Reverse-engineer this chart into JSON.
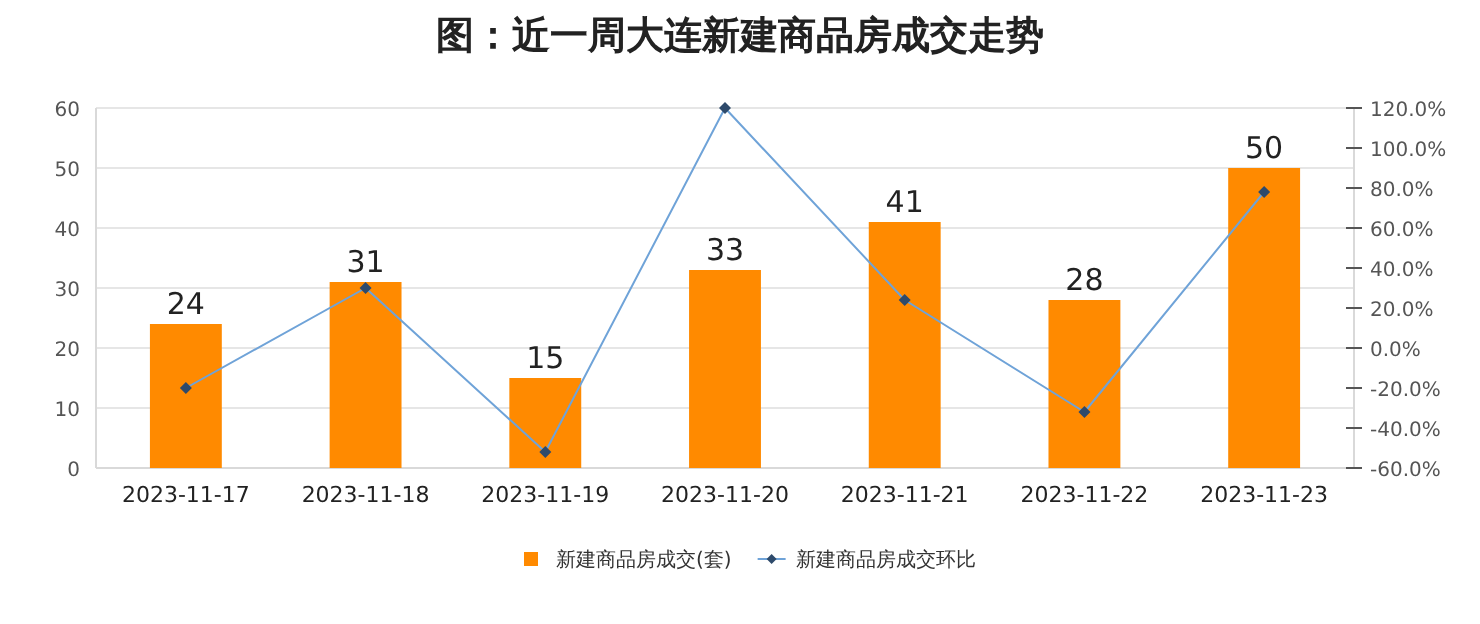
{
  "chart_data": {
    "type": "bar",
    "title": "图：近一周大连新建商品房成交走势",
    "categories": [
      "2023-11-17",
      "2023-11-18",
      "2023-11-19",
      "2023-11-20",
      "2023-11-21",
      "2023-11-22",
      "2023-11-23"
    ],
    "series": [
      {
        "name": "新建商品房成交(套)",
        "color": "#ff8a00",
        "values": [
          24,
          31,
          15,
          33,
          41,
          28,
          50
        ],
        "value_labels": [
          "24",
          "31",
          "15",
          "33",
          "41",
          "28",
          "50"
        ]
      },
      {
        "name": "新建商品房成交环比",
        "type": "line",
        "axis": "y2",
        "color": "#6fa3d8",
        "marker": "diamond",
        "values": [
          -20,
          30,
          -52,
          120,
          24,
          -32,
          78
        ]
      }
    ],
    "ylim": [
      0,
      60
    ],
    "yticks": [
      0,
      10,
      20,
      30,
      40,
      50,
      60
    ],
    "y2lim": [
      -60,
      120
    ],
    "y2ticks": [
      {
        "value": -60,
        "label": "-60.0%"
      },
      {
        "value": -40,
        "label": "-40.0%"
      },
      {
        "value": -20,
        "label": "-20.0%"
      },
      {
        "value": 0,
        "label": "0.0%"
      },
      {
        "value": 20,
        "label": "20.0%"
      },
      {
        "value": 40,
        "label": "40.0%"
      },
      {
        "value": 60,
        "label": "60.0%"
      },
      {
        "value": 80,
        "label": "80.0%"
      },
      {
        "value": 100,
        "label": "100.0%"
      },
      {
        "value": 120,
        "label": "120.0%"
      }
    ],
    "grid": "y",
    "legend": "bottom"
  }
}
